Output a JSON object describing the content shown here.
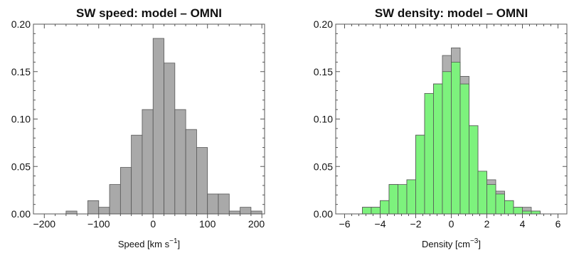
{
  "chart_data": [
    {
      "type": "bar",
      "title": "SW speed: model – OMNI",
      "xlabel_parts": [
        "Speed [km s",
        "−1",
        "]"
      ],
      "xlim": [
        -220,
        205
      ],
      "ylim": [
        0,
        0.2
      ],
      "xticks": [
        {
          "v": -200,
          "label": "−200"
        },
        {
          "v": -100,
          "label": "−100"
        },
        {
          "v": 0,
          "label": "0"
        },
        {
          "v": 100,
          "label": "100"
        },
        {
          "v": 200,
          "label": "200"
        }
      ],
      "yticks": [
        {
          "v": 0,
          "label": "0.00"
        },
        {
          "v": 0.05,
          "label": "0.05"
        },
        {
          "v": 0.1,
          "label": "0.10"
        },
        {
          "v": 0.15,
          "label": "0.15"
        },
        {
          "v": 0.2,
          "label": "0.20"
        }
      ],
      "bin_width": 20,
      "series": [
        {
          "color": "#a9a9a9",
          "bins": [
            {
              "x0": -160,
              "v": 0.003
            },
            {
              "x0": -120,
              "v": 0.014
            },
            {
              "x0": -100,
              "v": 0.007
            },
            {
              "x0": -80,
              "v": 0.031
            },
            {
              "x0": -60,
              "v": 0.049
            },
            {
              "x0": -40,
              "v": 0.083
            },
            {
              "x0": -20,
              "v": 0.11
            },
            {
              "x0": 0,
              "v": 0.185
            },
            {
              "x0": 20,
              "v": 0.159
            },
            {
              "x0": 40,
              "v": 0.11
            },
            {
              "x0": 60,
              "v": 0.089
            },
            {
              "x0": 80,
              "v": 0.07
            },
            {
              "x0": 100,
              "v": 0.021
            },
            {
              "x0": 120,
              "v": 0.021
            },
            {
              "x0": 140,
              "v": 0.003
            },
            {
              "x0": 160,
              "v": 0.007
            },
            {
              "x0": 180,
              "v": 0.003
            }
          ]
        }
      ]
    },
    {
      "type": "bar",
      "title": "SW density: model – OMNI",
      "xlabel_parts": [
        "Density [cm",
        "−3",
        "]"
      ],
      "xlim": [
        -6.5,
        6.5
      ],
      "ylim": [
        0,
        0.2
      ],
      "xticks": [
        {
          "v": -6,
          "label": "−6"
        },
        {
          "v": -4,
          "label": "−4"
        },
        {
          "v": -2,
          "label": "−2"
        },
        {
          "v": 0,
          "label": "0"
        },
        {
          "v": 2,
          "label": "2"
        },
        {
          "v": 4,
          "label": "4"
        },
        {
          "v": 6,
          "label": "6"
        }
      ],
      "yticks": [
        {
          "v": 0,
          "label": "0.00"
        },
        {
          "v": 0.05,
          "label": "0.05"
        },
        {
          "v": 0.1,
          "label": "0.10"
        },
        {
          "v": 0.15,
          "label": "0.15"
        },
        {
          "v": 0.2,
          "label": "0.20"
        }
      ],
      "bin_width": 0.5,
      "series": [
        {
          "color": "#b0b0b0",
          "bins": [
            {
              "x0": -5.0,
              "v": 0.007
            },
            {
              "x0": -4.5,
              "v": 0.007
            },
            {
              "x0": -4.0,
              "v": 0.014
            },
            {
              "x0": -3.5,
              "v": 0.031
            },
            {
              "x0": -3.0,
              "v": 0.026
            },
            {
              "x0": -2.5,
              "v": 0.036
            },
            {
              "x0": -2.0,
              "v": 0.083
            },
            {
              "x0": -1.5,
              "v": 0.12
            },
            {
              "x0": -1.0,
              "v": 0.137
            },
            {
              "x0": -0.5,
              "v": 0.167
            },
            {
              "x0": 0.0,
              "v": 0.175
            },
            {
              "x0": 0.5,
              "v": 0.145
            },
            {
              "x0": 1.0,
              "v": 0.093
            },
            {
              "x0": 1.5,
              "v": 0.045
            },
            {
              "x0": 2.0,
              "v": 0.036
            },
            {
              "x0": 2.5,
              "v": 0.024
            },
            {
              "x0": 3.0,
              "v": 0.014
            },
            {
              "x0": 3.5,
              "v": 0.007
            },
            {
              "x0": 4.0,
              "v": 0.007
            },
            {
              "x0": 4.5,
              "v": 0.003
            }
          ]
        },
        {
          "color": "#7df27d",
          "bins": [
            {
              "x0": -5.0,
              "v": 0.007
            },
            {
              "x0": -4.5,
              "v": 0.007
            },
            {
              "x0": -4.0,
              "v": 0.014
            },
            {
              "x0": -3.5,
              "v": 0.031
            },
            {
              "x0": -3.0,
              "v": 0.031
            },
            {
              "x0": -2.5,
              "v": 0.036
            },
            {
              "x0": -2.0,
              "v": 0.083
            },
            {
              "x0": -1.5,
              "v": 0.127
            },
            {
              "x0": -1.0,
              "v": 0.137
            },
            {
              "x0": -0.5,
              "v": 0.15
            },
            {
              "x0": 0.0,
              "v": 0.16
            },
            {
              "x0": 0.5,
              "v": 0.137
            },
            {
              "x0": 1.0,
              "v": 0.093
            },
            {
              "x0": 1.5,
              "v": 0.045
            },
            {
              "x0": 2.0,
              "v": 0.031
            },
            {
              "x0": 2.5,
              "v": 0.021
            },
            {
              "x0": 3.0,
              "v": 0.014
            },
            {
              "x0": 3.5,
              "v": 0.007
            },
            {
              "x0": 4.0,
              "v": 0.003
            },
            {
              "x0": 4.5,
              "v": 0.003
            }
          ]
        }
      ]
    }
  ]
}
